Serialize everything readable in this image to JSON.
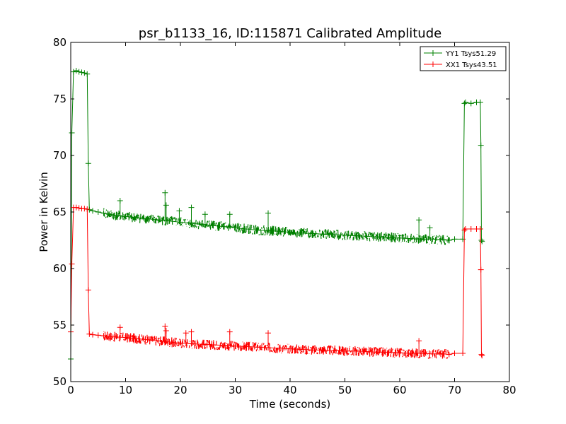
{
  "chart_data": {
    "type": "line",
    "title": "psr_b1133_16, ID:115871 Calibrated Amplitude",
    "xlabel": "Time (seconds)",
    "ylabel": "Power in Kelvin",
    "xlim": [
      0,
      80
    ],
    "ylim": [
      50,
      80
    ],
    "xticks": [
      0,
      10,
      20,
      30,
      40,
      50,
      60,
      70,
      80
    ],
    "yticks": [
      50,
      55,
      60,
      65,
      70,
      75,
      80
    ],
    "grid": false,
    "legend_position": "top-right",
    "marker": "plus",
    "series": [
      {
        "name": "YY1 Tsys51.29",
        "color": "#008000",
        "points": [
          [
            0.0,
            52.0
          ],
          [
            0.2,
            72.0
          ],
          [
            0.5,
            77.4
          ],
          [
            1.0,
            77.5
          ],
          [
            1.5,
            77.4
          ],
          [
            2.0,
            77.35
          ],
          [
            2.5,
            77.3
          ],
          [
            3.0,
            77.2
          ],
          [
            3.2,
            69.3
          ],
          [
            3.4,
            65.2
          ],
          [
            4.0,
            65.1
          ],
          [
            5.0,
            65.0
          ],
          [
            6.0,
            64.9
          ],
          [
            7.0,
            64.8
          ],
          [
            8.0,
            64.7
          ],
          [
            10.0,
            64.6
          ],
          [
            12.0,
            64.5
          ],
          [
            14.0,
            64.4
          ],
          [
            16.0,
            64.3
          ],
          [
            18.0,
            64.2
          ],
          [
            20.0,
            64.1
          ],
          [
            22.0,
            64.0
          ],
          [
            24.0,
            63.9
          ],
          [
            26.0,
            63.8
          ],
          [
            28.0,
            63.7
          ],
          [
            30.0,
            63.6
          ],
          [
            32.0,
            63.5
          ],
          [
            34.0,
            63.4
          ],
          [
            36.0,
            63.35
          ],
          [
            38.0,
            63.3
          ],
          [
            40.0,
            63.2
          ],
          [
            42.0,
            63.15
          ],
          [
            44.0,
            63.1
          ],
          [
            46.0,
            63.05
          ],
          [
            48.0,
            63.0
          ],
          [
            50.0,
            62.95
          ],
          [
            52.0,
            62.9
          ],
          [
            54.0,
            62.85
          ],
          [
            56.0,
            62.8
          ],
          [
            58.0,
            62.75
          ],
          [
            60.0,
            62.7
          ],
          [
            62.0,
            62.65
          ],
          [
            64.0,
            62.6
          ],
          [
            66.0,
            62.6
          ],
          [
            68.0,
            62.55
          ],
          [
            69.0,
            62.5
          ],
          [
            70.0,
            62.6
          ],
          [
            71.5,
            62.6
          ],
          [
            71.8,
            74.6
          ],
          [
            72.0,
            74.7
          ],
          [
            73.0,
            74.6
          ],
          [
            74.0,
            74.7
          ],
          [
            74.7,
            74.7
          ],
          [
            74.8,
            70.9
          ],
          [
            74.9,
            62.5
          ],
          [
            75.0,
            62.4
          ]
        ],
        "spikes": [
          [
            9.0,
            66.0
          ],
          [
            17.2,
            66.7
          ],
          [
            17.4,
            65.6
          ],
          [
            19.8,
            65.1
          ],
          [
            22.0,
            65.4
          ],
          [
            24.5,
            64.8
          ],
          [
            29.0,
            64.8
          ],
          [
            36.0,
            64.9
          ],
          [
            63.5,
            64.3
          ],
          [
            65.5,
            63.6
          ]
        ]
      },
      {
        "name": "XX1 Tsys43.51",
        "color": "#ff0000",
        "points": [
          [
            0.0,
            54.4
          ],
          [
            0.2,
            60.4
          ],
          [
            0.5,
            65.4
          ],
          [
            1.0,
            65.4
          ],
          [
            1.5,
            65.35
          ],
          [
            2.0,
            65.3
          ],
          [
            2.5,
            65.3
          ],
          [
            3.0,
            65.25
          ],
          [
            3.2,
            58.1
          ],
          [
            3.4,
            54.2
          ],
          [
            4.0,
            54.15
          ],
          [
            5.0,
            54.1
          ],
          [
            6.0,
            54.05
          ],
          [
            7.0,
            54.0
          ],
          [
            8.0,
            53.95
          ],
          [
            10.0,
            53.9
          ],
          [
            12.0,
            53.8
          ],
          [
            14.0,
            53.7
          ],
          [
            16.0,
            53.6
          ],
          [
            18.0,
            53.5
          ],
          [
            20.0,
            53.4
          ],
          [
            22.0,
            53.35
          ],
          [
            24.0,
            53.3
          ],
          [
            26.0,
            53.25
          ],
          [
            28.0,
            53.2
          ],
          [
            30.0,
            53.15
          ],
          [
            32.0,
            53.1
          ],
          [
            34.0,
            53.05
          ],
          [
            36.0,
            53.0
          ],
          [
            38.0,
            52.95
          ],
          [
            40.0,
            52.9
          ],
          [
            42.0,
            52.85
          ],
          [
            44.0,
            52.8
          ],
          [
            46.0,
            52.8
          ],
          [
            48.0,
            52.75
          ],
          [
            50.0,
            52.7
          ],
          [
            52.0,
            52.7
          ],
          [
            54.0,
            52.65
          ],
          [
            56.0,
            52.6
          ],
          [
            58.0,
            52.6
          ],
          [
            60.0,
            52.55
          ],
          [
            62.0,
            52.5
          ],
          [
            64.0,
            52.5
          ],
          [
            66.0,
            52.45
          ],
          [
            68.0,
            52.45
          ],
          [
            69.0,
            52.4
          ],
          [
            70.0,
            52.5
          ],
          [
            71.5,
            52.5
          ],
          [
            71.8,
            63.4
          ],
          [
            72.0,
            63.5
          ],
          [
            73.0,
            63.5
          ],
          [
            74.0,
            63.5
          ],
          [
            74.7,
            63.5
          ],
          [
            74.8,
            59.9
          ],
          [
            74.9,
            52.4
          ],
          [
            75.0,
            52.3
          ]
        ],
        "spikes": [
          [
            9.0,
            54.8
          ],
          [
            17.2,
            54.9
          ],
          [
            17.4,
            54.5
          ],
          [
            21.0,
            54.3
          ],
          [
            22.0,
            54.4
          ],
          [
            29.0,
            54.4
          ],
          [
            36.0,
            54.3
          ],
          [
            63.5,
            53.6
          ]
        ]
      }
    ]
  }
}
